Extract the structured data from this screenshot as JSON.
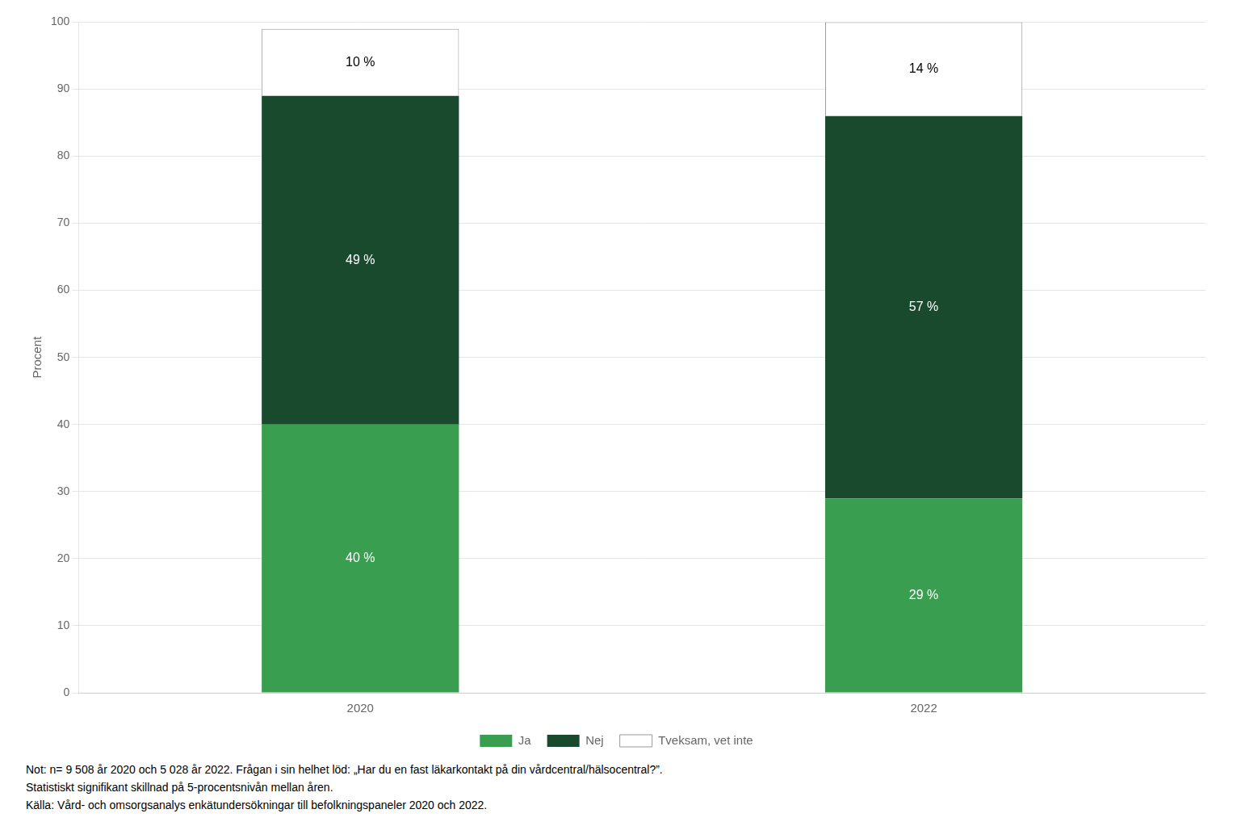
{
  "chart_data": {
    "type": "bar",
    "stacked": true,
    "categories": [
      "2020",
      "2022"
    ],
    "series": [
      {
        "name": "Ja",
        "color": "#3a9e50",
        "values": [
          40,
          29
        ],
        "value_labels": [
          "40 %",
          "29 %"
        ]
      },
      {
        "name": "Nej",
        "color": "#1a4a2e",
        "values": [
          49,
          57
        ],
        "value_labels": [
          "49 %",
          "57 %"
        ]
      },
      {
        "name": "Tveksam, vet inte",
        "color": "#ffffff",
        "values": [
          10,
          14
        ],
        "value_labels": [
          "10 %",
          "14 %"
        ]
      }
    ],
    "ylabel": "Procent",
    "ylim": [
      0,
      100
    ],
    "yticks": [
      0,
      10,
      20,
      30,
      40,
      50,
      60,
      70,
      80,
      90,
      100
    ],
    "grid": true,
    "legend": "bottom",
    "data_labels": true,
    "annotations": [
      "Not: n= 9 508 år 2020 och 5 028 år 2022. Frågan i sin helhet löd: „Har du en fast läkarkontakt på din vårdcentral/hälsocentral?”.",
      "Statistiskt signifikant skillnad på 5-procentsnivån mellan åren.",
      "Källa: Vård- och omsorgsanalys enkätundersökningar till befolkningspaneler 2020 och 2022."
    ]
  }
}
